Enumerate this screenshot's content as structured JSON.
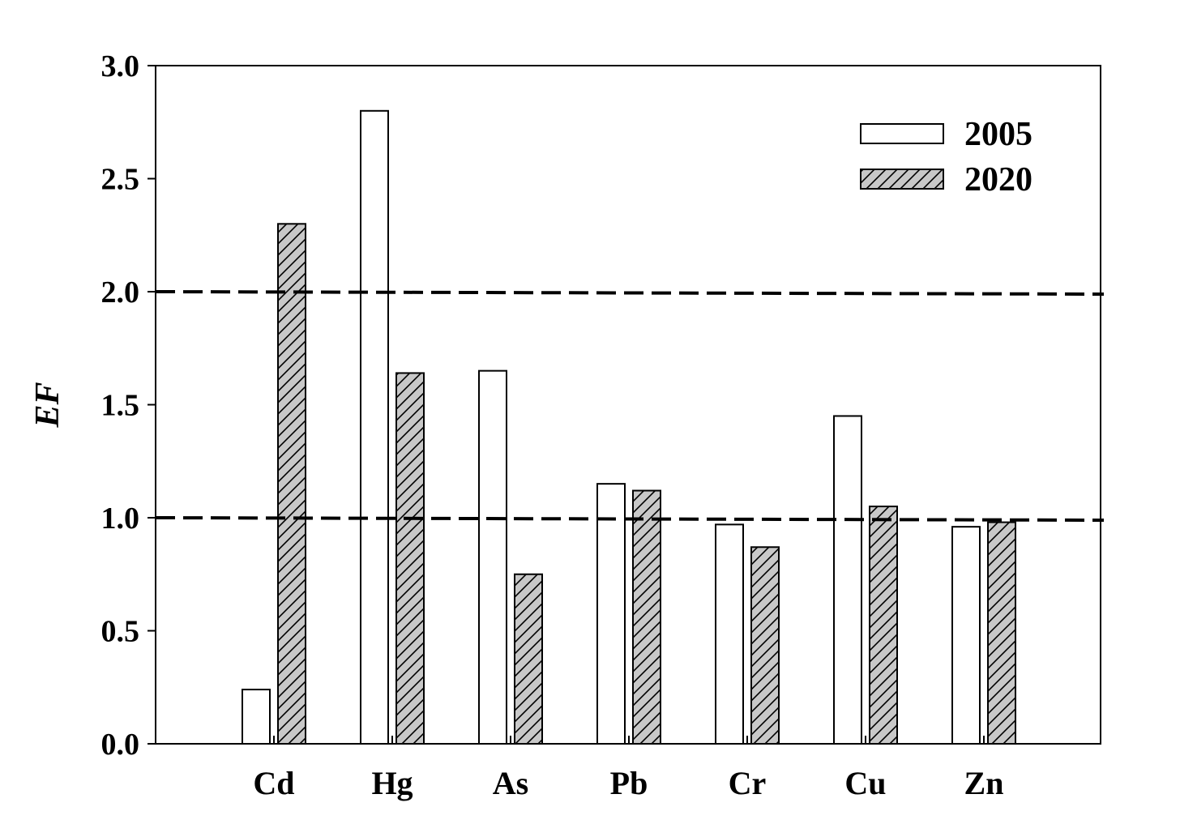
{
  "chart_data": {
    "type": "bar",
    "title": "",
    "xlabel": "",
    "ylabel": "EF",
    "ylim": [
      0,
      3.0
    ],
    "yticks": [
      "0.0",
      "0.5",
      "1.0",
      "1.5",
      "2.0",
      "2.5",
      "3.0"
    ],
    "ytick_values": [
      0,
      0.5,
      1.0,
      1.5,
      2.0,
      2.5,
      3.0
    ],
    "categories": [
      "Cd",
      "Hg",
      "As",
      "Pb",
      "Cr",
      "Cu",
      "Zn"
    ],
    "series": [
      {
        "name": "2005",
        "fill": "#ffffff",
        "pattern": "none",
        "values": [
          0.24,
          2.8,
          1.65,
          1.15,
          0.97,
          1.45,
          0.96
        ]
      },
      {
        "name": "2020",
        "fill": "#c8c8c8",
        "pattern": "diagonal-hatch",
        "values": [
          2.3,
          1.64,
          0.75,
          1.12,
          0.87,
          1.05,
          0.98
        ]
      }
    ],
    "reference_lines": [
      {
        "y": 2.0,
        "style": "dashed"
      },
      {
        "y": 1.0,
        "style": "dashed"
      }
    ],
    "legend_position": "top-right",
    "grid": false
  }
}
